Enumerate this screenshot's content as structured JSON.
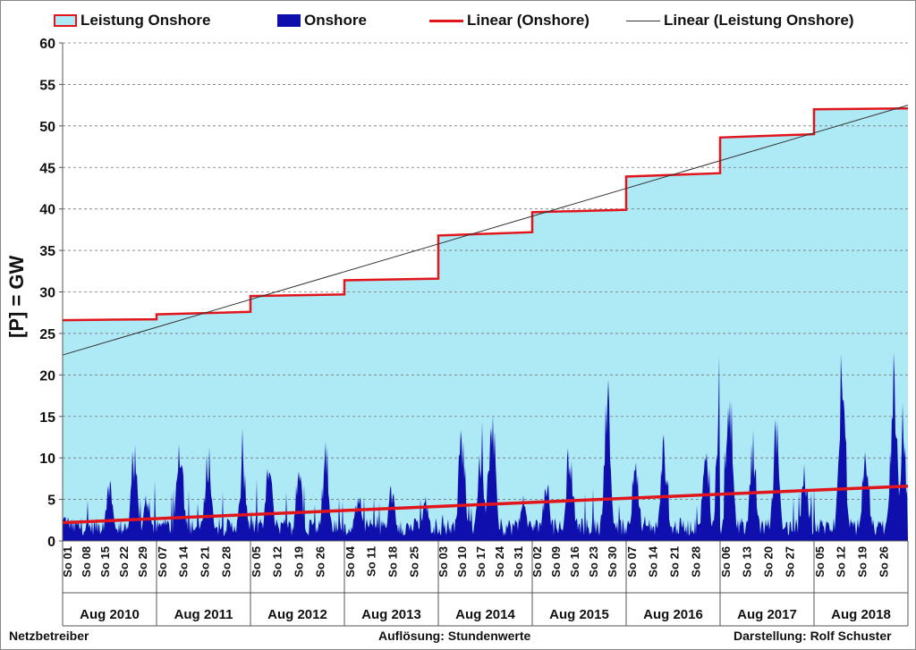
{
  "chart_data": {
    "type": "area",
    "legend": {
      "placement": "top",
      "items": [
        {
          "label": "Leistung Onshore",
          "swatch": "area-outline",
          "fill": "#aeeaf6",
          "stroke": "#e0161c"
        },
        {
          "label": "Onshore",
          "swatch": "bar",
          "fill": "#0f0fae"
        },
        {
          "label": "Linear (Onshore)",
          "swatch": "line",
          "stroke": "#e0161c"
        },
        {
          "label": "Linear (Leistung Onshore)",
          "swatch": "thin-line",
          "stroke": "#333333"
        }
      ]
    },
    "ylabel": "[P]  =  GW",
    "ylim": [
      0,
      60
    ],
    "yticks": [
      0,
      5,
      10,
      15,
      20,
      25,
      30,
      35,
      40,
      45,
      50,
      55,
      60
    ],
    "grid": true,
    "year_groups": [
      {
        "label": "Aug 2010",
        "days": [
          "So 01",
          "So 08",
          "So 15",
          "So 22",
          "So 29"
        ]
      },
      {
        "label": "Aug 2011",
        "days": [
          "So 07",
          "So 14",
          "So 21",
          "So 28"
        ]
      },
      {
        "label": "Aug 2012",
        "days": [
          "So 05",
          "So 12",
          "So 19",
          "So 26"
        ]
      },
      {
        "label": "Aug 2013",
        "days": [
          "So 04",
          "So 11",
          "So 18",
          "So 25"
        ]
      },
      {
        "label": "Aug 2014",
        "days": [
          "So 03",
          "So 10",
          "So 17",
          "So 24",
          "So 31"
        ]
      },
      {
        "label": "Aug 2015",
        "days": [
          "So 02",
          "So 09",
          "So 16",
          "So 23",
          "So 30"
        ]
      },
      {
        "label": "Aug 2016",
        "days": [
          "So 07",
          "So 14",
          "So 21",
          "So 28"
        ]
      },
      {
        "label": "Aug 2017",
        "days": [
          "So 06",
          "So 13",
          "So 20",
          "So 27"
        ]
      },
      {
        "label": "Aug 2018",
        "days": [
          "So 05",
          "So 12",
          "So 19",
          "So 26"
        ]
      }
    ],
    "series": [
      {
        "name": "Leistung Onshore",
        "kind": "step-area",
        "color": "#aeeaf6",
        "stroke": "#e0161c",
        "values_by_year": [
          [
            26.6,
            26.7
          ],
          [
            27.3,
            27.6
          ],
          [
            29.5,
            29.7
          ],
          [
            31.4,
            31.6
          ],
          [
            36.8,
            37.2
          ],
          [
            39.6,
            39.9
          ],
          [
            43.9,
            44.3
          ],
          [
            48.6,
            49.0
          ],
          [
            52.0,
            52.1
          ]
        ]
      },
      {
        "name": "Onshore",
        "kind": "hourly-area",
        "color": "#0f0fae",
        "resolution": "hourly",
        "peaks_by_year": [
          [
            {
              "day_fraction": 0.04,
              "value": 3.5
            },
            {
              "day_fraction": 0.5,
              "value": 8.6
            },
            {
              "day_fraction": 0.76,
              "value": 12.6
            },
            {
              "day_fraction": 0.9,
              "value": 6.5
            }
          ],
          [
            {
              "day_fraction": 0.25,
              "value": 15.2
            },
            {
              "day_fraction": 0.55,
              "value": 12.6
            },
            {
              "day_fraction": 0.92,
              "value": 10.5
            }
          ],
          [
            {
              "day_fraction": 0.2,
              "value": 11.2
            },
            {
              "day_fraction": 0.52,
              "value": 10.4
            },
            {
              "day_fraction": 0.8,
              "value": 12.2
            }
          ],
          [
            {
              "day_fraction": 0.15,
              "value": 6.5
            },
            {
              "day_fraction": 0.5,
              "value": 7.5
            },
            {
              "day_fraction": 0.86,
              "value": 6.0
            }
          ],
          [
            {
              "day_fraction": 0.25,
              "value": 15.8
            },
            {
              "day_fraction": 0.45,
              "value": 13.2
            },
            {
              "day_fraction": 0.57,
              "value": 19.2
            },
            {
              "day_fraction": 0.9,
              "value": 6.0
            }
          ],
          [
            {
              "day_fraction": 0.15,
              "value": 8.4
            },
            {
              "day_fraction": 0.4,
              "value": 13.3
            },
            {
              "day_fraction": 0.8,
              "value": 20.8
            }
          ],
          [
            {
              "day_fraction": 0.1,
              "value": 12.3
            },
            {
              "day_fraction": 0.4,
              "value": 13.3
            },
            {
              "day_fraction": 0.85,
              "value": 11.8
            },
            {
              "day_fraction": 1.0,
              "value": 23.5
            }
          ],
          [
            {
              "day_fraction": 0.1,
              "value": 20.2
            },
            {
              "day_fraction": 0.35,
              "value": 13.7
            },
            {
              "day_fraction": 0.6,
              "value": 15.5
            },
            {
              "day_fraction": 0.9,
              "value": 10.0
            }
          ],
          [
            {
              "day_fraction": 0.3,
              "value": 25.5
            },
            {
              "day_fraction": 0.55,
              "value": 13.5
            },
            {
              "day_fraction": 0.85,
              "value": 23.5
            },
            {
              "day_fraction": 0.95,
              "value": 14.5
            }
          ]
        ]
      },
      {
        "name": "Linear (Onshore)",
        "kind": "trendline",
        "color": "#e0161c",
        "start": 2.2,
        "end": 6.6
      },
      {
        "name": "Linear (Leistung Onshore)",
        "kind": "trendline",
        "color": "#333333",
        "start": 22.4,
        "end": 52.5
      }
    ]
  },
  "footer": {
    "left": "Netzbetreiber",
    "center": "Auflösung: Stundenwerte",
    "right": "Darstellung: Rolf Schuster"
  }
}
